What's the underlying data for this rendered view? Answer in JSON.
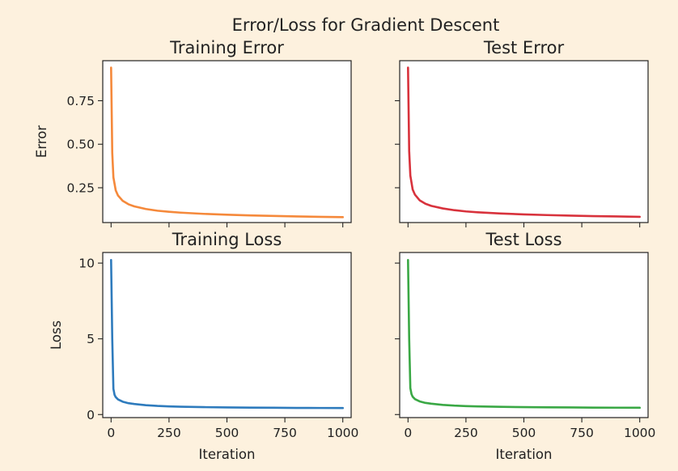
{
  "figure": {
    "suptitle": "Error/Loss for Gradient Descent",
    "background": "#fdf1de"
  },
  "chart_data": [
    {
      "type": "line",
      "title": "Training Error",
      "xlabel": "",
      "ylabel": "Error",
      "color": "#f5893b",
      "xlim": [
        -36,
        1036
      ],
      "ylim": [
        0.05,
        0.98
      ],
      "x_ticks": [
        0,
        250,
        500,
        750,
        1000
      ],
      "y_ticks": [
        0.25,
        0.5,
        0.75
      ],
      "y_tick_labels": [
        "0.25",
        "0.50",
        "0.75"
      ],
      "x": [
        0,
        5,
        10,
        20,
        30,
        50,
        75,
        100,
        150,
        200,
        250,
        300,
        400,
        500,
        600,
        700,
        800,
        900,
        1000
      ],
      "y": [
        0.94,
        0.45,
        0.31,
        0.235,
        0.205,
        0.175,
        0.155,
        0.143,
        0.128,
        0.118,
        0.112,
        0.107,
        0.1,
        0.095,
        0.091,
        0.088,
        0.085,
        0.083,
        0.081
      ]
    },
    {
      "type": "line",
      "title": "Test Error",
      "xlabel": "",
      "ylabel": "",
      "color": "#d8323c",
      "xlim": [
        -36,
        1036
      ],
      "ylim": [
        0.05,
        0.98
      ],
      "x_ticks": [
        0,
        250,
        500,
        750,
        1000
      ],
      "y_ticks": [
        0.25,
        0.5,
        0.75
      ],
      "y_tick_labels": [
        "",
        "",
        ""
      ],
      "x": [
        0,
        5,
        10,
        20,
        30,
        50,
        75,
        100,
        150,
        200,
        250,
        300,
        400,
        500,
        600,
        700,
        800,
        900,
        1000
      ],
      "y": [
        0.94,
        0.46,
        0.32,
        0.24,
        0.21,
        0.178,
        0.158,
        0.146,
        0.131,
        0.121,
        0.114,
        0.109,
        0.102,
        0.097,
        0.093,
        0.09,
        0.087,
        0.085,
        0.083
      ]
    },
    {
      "type": "line",
      "title": "Training Loss",
      "xlabel": "Iteration",
      "ylabel": "Loss",
      "color": "#2e7bbd",
      "xlim": [
        -36,
        1036
      ],
      "ylim": [
        -0.2,
        10.7
      ],
      "x_ticks": [
        0,
        250,
        500,
        750,
        1000
      ],
      "x_tick_labels": [
        "0",
        "250",
        "500",
        "750",
        "1000"
      ],
      "y_ticks": [
        0,
        5,
        10
      ],
      "y_tick_labels": [
        "0",
        "5",
        "10"
      ],
      "x": [
        0,
        5,
        10,
        15,
        20,
        30,
        50,
        75,
        100,
        150,
        200,
        250,
        300,
        400,
        500,
        600,
        700,
        800,
        900,
        1000
      ],
      "y": [
        10.2,
        5.0,
        1.7,
        1.3,
        1.15,
        1.0,
        0.85,
        0.75,
        0.7,
        0.62,
        0.57,
        0.54,
        0.52,
        0.49,
        0.47,
        0.46,
        0.45,
        0.44,
        0.435,
        0.43
      ]
    },
    {
      "type": "line",
      "title": "Test Loss",
      "xlabel": "Iteration",
      "ylabel": "",
      "color": "#3aa845",
      "xlim": [
        -36,
        1036
      ],
      "ylim": [
        -0.2,
        10.7
      ],
      "x_ticks": [
        0,
        250,
        500,
        750,
        1000
      ],
      "x_tick_labels": [
        "0",
        "250",
        "500",
        "750",
        "1000"
      ],
      "y_ticks": [
        0,
        5,
        10
      ],
      "y_tick_labels": [
        "",
        "",
        ""
      ],
      "x": [
        0,
        5,
        10,
        15,
        20,
        30,
        50,
        75,
        100,
        150,
        200,
        250,
        300,
        400,
        500,
        600,
        700,
        800,
        900,
        1000
      ],
      "y": [
        10.2,
        5.0,
        1.75,
        1.35,
        1.18,
        1.02,
        0.87,
        0.77,
        0.72,
        0.64,
        0.59,
        0.56,
        0.54,
        0.51,
        0.49,
        0.48,
        0.47,
        0.46,
        0.455,
        0.45
      ]
    }
  ]
}
